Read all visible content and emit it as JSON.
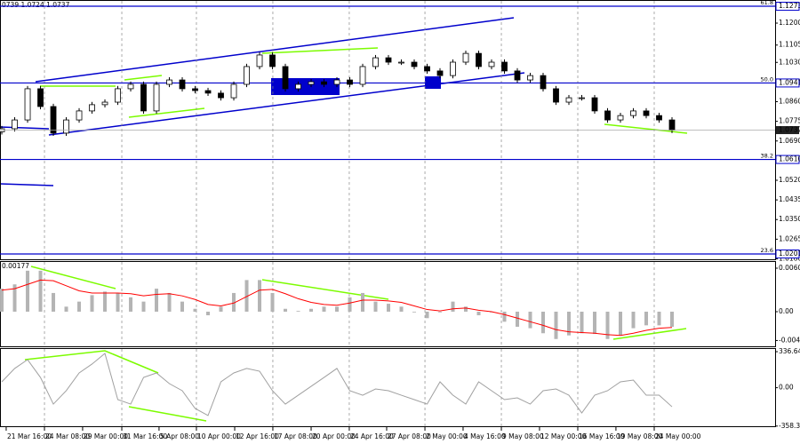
{
  "chart_data": [
    {
      "type": "candlestick",
      "header": "0739 1.0724 1.0737",
      "ohlc": [
        [
          1.073,
          1.0755,
          1.0718,
          1.0743
        ],
        [
          1.0743,
          1.0793,
          1.0731,
          1.0781
        ],
        [
          1.0781,
          1.0928,
          1.0769,
          1.0916
        ],
        [
          1.0916,
          1.0928,
          1.0827,
          1.0839
        ],
        [
          1.0839,
          1.0851,
          1.0712,
          1.0724
        ],
        [
          1.0724,
          1.0793,
          1.0712,
          1.0781
        ],
        [
          1.0781,
          1.0832,
          1.0769,
          1.082
        ],
        [
          1.082,
          1.0859,
          1.0808,
          1.0847
        ],
        [
          1.0847,
          1.087,
          1.0835,
          1.0858
        ],
        [
          1.0858,
          1.0928,
          1.0846,
          1.0916
        ],
        [
          1.0916,
          1.0947,
          1.0904,
          1.0935
        ],
        [
          1.0935,
          1.0947,
          1.0808,
          1.082
        ],
        [
          1.082,
          1.0947,
          1.0808,
          1.0935
        ],
        [
          1.0935,
          1.0966,
          1.0923,
          1.0954
        ],
        [
          1.0954,
          1.0966,
          1.0904,
          1.0916
        ],
        [
          1.0916,
          1.0928,
          1.0896,
          1.0908
        ],
        [
          1.0908,
          1.092,
          1.0885,
          1.0897
        ],
        [
          1.0897,
          1.0909,
          1.0865,
          1.0877
        ],
        [
          1.0877,
          1.0947,
          1.0865,
          1.0935
        ],
        [
          1.0935,
          1.1024,
          1.0923,
          1.1012
        ],
        [
          1.1012,
          1.1074,
          1.1,
          1.1062
        ],
        [
          1.1062,
          1.1074,
          1.1,
          1.1012
        ],
        [
          1.1012,
          1.1024,
          1.0904,
          1.0916
        ],
        [
          1.0916,
          1.0947,
          1.0904,
          1.0935
        ],
        [
          1.0935,
          1.0958,
          1.0923,
          1.0946
        ],
        [
          1.0946,
          1.0958,
          1.0923,
          1.0935
        ],
        [
          1.0935,
          1.0966,
          1.0923,
          1.0954
        ],
        [
          1.0954,
          1.0966,
          1.0923,
          1.0935
        ],
        [
          1.0935,
          1.1024,
          1.0923,
          1.1012
        ],
        [
          1.1012,
          1.1062,
          1.1,
          1.105
        ],
        [
          1.105,
          1.1062,
          1.1019,
          1.1031
        ],
        [
          1.1031,
          1.1043,
          1.1019,
          1.1031
        ],
        [
          1.1031,
          1.1043,
          1.1,
          1.1012
        ],
        [
          1.1012,
          1.1024,
          1.0981,
          1.0993
        ],
        [
          1.0993,
          1.1005,
          1.0961,
          1.0973
        ],
        [
          1.0973,
          1.1043,
          1.0961,
          1.1031
        ],
        [
          1.1031,
          1.1081,
          1.1019,
          1.1069
        ],
        [
          1.1069,
          1.1081,
          1.1,
          1.1012
        ],
        [
          1.1012,
          1.1043,
          1.1,
          1.1031
        ],
        [
          1.1031,
          1.1043,
          1.0981,
          1.0993
        ],
        [
          1.0993,
          1.1005,
          1.0942,
          1.0954
        ],
        [
          1.0954,
          1.0985,
          1.0942,
          1.0973
        ],
        [
          1.0973,
          1.0985,
          1.0904,
          1.0916
        ],
        [
          1.0916,
          1.0928,
          1.0846,
          1.0858
        ],
        [
          1.0858,
          1.0889,
          1.0846,
          1.0877
        ],
        [
          1.0877,
          1.0889,
          1.0865,
          1.0877
        ],
        [
          1.0877,
          1.0889,
          1.0808,
          1.082
        ],
        [
          1.082,
          1.0832,
          1.0769,
          1.0781
        ],
        [
          1.0781,
          1.0812,
          1.0769,
          1.08
        ],
        [
          1.08,
          1.0832,
          1.0788,
          1.082
        ],
        [
          1.082,
          1.0832,
          1.0788,
          1.08
        ],
        [
          1.08,
          1.0812,
          1.0769,
          1.0781
        ],
        [
          1.0781,
          1.0793,
          1.0724,
          1.0737
        ]
      ],
      "color": "#000000",
      "xlim": [
        -0.14,
        60
      ],
      "grid": true,
      "xticks": [
        {
          "value": 0.34,
          "label": "21 Mar 16:00"
        },
        {
          "value": 3.31,
          "label": "24 Mar 08:00"
        },
        {
          "value": 6.27,
          "label": "29 Mar 00:00"
        },
        {
          "value": 9.31,
          "label": "31 Mar 16:00"
        },
        {
          "value": 12.2,
          "label": "5 Apr 08:00"
        },
        {
          "value": 15.1,
          "label": "10 Apr 00:00"
        },
        {
          "value": 18.07,
          "label": "12 Apr 16:00"
        },
        {
          "value": 21.03,
          "label": "17 Apr 08:00"
        },
        {
          "value": 24.0,
          "label": "20 Apr 00:00"
        },
        {
          "value": 26.96,
          "label": "24 Apr 16:00"
        },
        {
          "value": 29.86,
          "label": "27 Apr 08:00"
        },
        {
          "value": 32.83,
          "label": "2 May 00:00"
        },
        {
          "value": 35.79,
          "label": "4 May 16:00"
        },
        {
          "value": 38.76,
          "label": "9 May 08:00"
        },
        {
          "value": 41.72,
          "label": "12 May 00:00"
        },
        {
          "value": 44.69,
          "label": "16 May 16:00"
        },
        {
          "value": 47.65,
          "label": "19 May 08:00"
        },
        {
          "value": 50.62,
          "label": "24 May 00:00"
        }
      ],
      "ylim": [
        1.0178,
        1.13
      ],
      "yticks": [
        {
          "value": 1.12,
          "label": "1.1200"
        },
        1.1105,
        {
          "value": 1.103,
          "label": "1.1030"
        },
        {
          "value": 1.086,
          "label": "1.0860"
        },
        1.0775,
        {
          "value": 1.069,
          "label": "1.0690"
        },
        {
          "value": 1.052,
          "label": "1.0520"
        },
        1.0435,
        {
          "value": 1.035,
          "label": "1.0350"
        },
        1.0265,
        {
          "value": 1.018,
          "label": "1.0180"
        }
      ],
      "levels": [
        {
          "value": 1.1273,
          "fib": "61.8"
        },
        {
          "value": 1.0941,
          "fib": "50.0"
        },
        {
          "value": 1.061,
          "label": "1.0610",
          "fib": "38.2"
        },
        {
          "value": 1.0201,
          "fib": "23.6"
        }
      ],
      "level_color": "#0000cc",
      "current": 1.0737
    },
    {
      "type": "macd",
      "header": "0.00177",
      "ylim": [
        -0.00482,
        0.00704
      ],
      "yticks": [
        0.00605,
        {
          "value": 0,
          "label": "0.00"
        },
        -0.00401
      ],
      "histogram": [
        0.0032,
        0.0038,
        0.0057,
        0.0057,
        0.0026,
        0.0007,
        0.0014,
        0.0023,
        0.0028,
        0.0026,
        0.002,
        0.0014,
        0.0032,
        0.0026,
        0.0014,
        0.0004,
        -0.0005,
        0.0007,
        0.0026,
        0.0044,
        0.0044,
        0.0026,
        0.0004,
        0.0001,
        0.0004,
        0.0007,
        0.0007,
        0.002,
        0.0026,
        0.0014,
        0.0011,
        0.0007,
        -0.0001,
        -0.0009,
        -0.0001,
        0.0014,
        0.0007,
        -0.0005,
        -0.0001,
        -0.0014,
        -0.0021,
        -0.0023,
        -0.003,
        -0.0038,
        -0.0033,
        -0.003,
        -0.0031,
        -0.0038,
        -0.0033,
        -0.0023,
        -0.0019,
        -0.0019,
        -0.0021
      ],
      "signal": [
        0.003,
        0.0032,
        0.0038,
        0.0044,
        0.0043,
        0.0036,
        0.0029,
        0.0026,
        0.0026,
        0.0026,
        0.0025,
        0.0022,
        0.0024,
        0.0025,
        0.0022,
        0.0017,
        0.001,
        0.0008,
        0.0012,
        0.0021,
        0.003,
        0.0031,
        0.0025,
        0.0018,
        0.0013,
        0.001,
        0.0009,
        0.0012,
        0.0016,
        0.0016,
        0.0015,
        0.0013,
        0.0008,
        0.0003,
        0.0001,
        0.0004,
        0.0005,
        0.0002,
        0.0,
        -0.0004,
        -0.0009,
        -0.0014,
        -0.0019,
        -0.0025,
        -0.0028,
        -0.0029,
        -0.003,
        -0.0032,
        -0.0033,
        -0.003,
        -0.0026,
        -0.0023,
        -0.0022
      ],
      "histogram_color": "#b4b4b4",
      "signal_color": "#ff0000"
    },
    {
      "type": "line",
      "ylim": [
        -360,
        370
      ],
      "yticks": [
        336.644,
        {
          "value": 0,
          "label": "0.00"
        },
        -358.396
      ],
      "values": [
        55,
        180,
        262,
        96,
        -153,
        -28,
        138,
        221,
        320,
        -111,
        -153,
        96,
        138,
        38,
        -28,
        -194,
        -260,
        55,
        138,
        180,
        154,
        -28,
        -153,
        -70,
        13,
        96,
        180,
        -28,
        -70,
        -12,
        -28,
        -70,
        -111,
        -153,
        55,
        -70,
        -153,
        55,
        -28,
        -111,
        -95,
        -153,
        -28,
        -12,
        -70,
        -236,
        -70,
        -28,
        55,
        71,
        -70,
        -70,
        -178
      ],
      "color": "#a0a0a0"
    }
  ]
}
